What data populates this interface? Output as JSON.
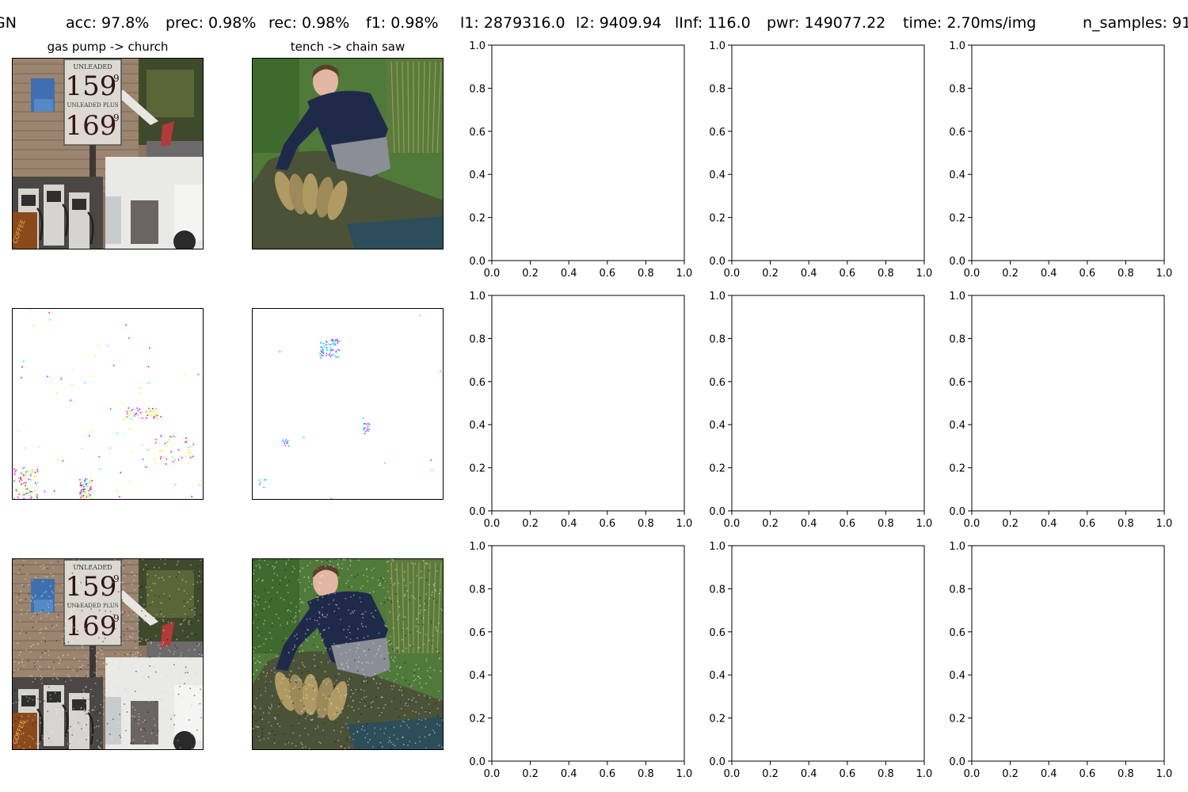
{
  "header": {
    "items": [
      {
        "name": "header-method",
        "text": "GN"
      },
      {
        "name": "header-acc",
        "text": "acc: 97.8%"
      },
      {
        "name": "header-prec",
        "text": "prec: 0.98%"
      },
      {
        "name": "header-rec",
        "text": "rec: 0.98%"
      },
      {
        "name": "header-f1",
        "text": "f1: 0.98%"
      },
      {
        "name": "header-l1",
        "text": "l1: 2879316.0"
      },
      {
        "name": "header-l2",
        "text": "l2: 9409.94"
      },
      {
        "name": "header-linf",
        "text": "lInf: 116.0"
      },
      {
        "name": "header-pwr",
        "text": "pwr: 149077.22"
      },
      {
        "name": "header-time",
        "text": "time: 2.70ms/img"
      },
      {
        "name": "header-samples",
        "text": "n_samples: 91"
      }
    ]
  },
  "image_panels": [
    {
      "row": 0,
      "col": 0,
      "title": "gas pump -> church",
      "scene": "gas-pump",
      "kind": "original"
    },
    {
      "row": 0,
      "col": 1,
      "title": "tench -> chain saw",
      "scene": "tench",
      "kind": "original"
    },
    {
      "row": 1,
      "col": 0,
      "title": "",
      "scene": "gas-pump",
      "kind": "perturbation"
    },
    {
      "row": 1,
      "col": 1,
      "title": "",
      "scene": "tench",
      "kind": "perturbation"
    },
    {
      "row": 2,
      "col": 0,
      "title": "",
      "scene": "gas-pump",
      "kind": "adversarial"
    },
    {
      "row": 2,
      "col": 1,
      "title": "",
      "scene": "tench",
      "kind": "adversarial"
    }
  ],
  "sign_text": {
    "unleaded": "UNLEADED",
    "unleaded_plus": "UNLEADED PLUS",
    "price1": "159",
    "price2": "169",
    "price_sup": "9",
    "coffee": "COFFEE"
  },
  "chart_data": {
    "type": "scatter",
    "title": "",
    "xlabel": "",
    "ylabel": "",
    "xlim": [
      0,
      1
    ],
    "ylim": [
      0,
      1
    ],
    "grid": false,
    "rows": 3,
    "cols": [
      2,
      3,
      4
    ],
    "xticks": [
      "0.0",
      "0.2",
      "0.4",
      "0.6",
      "0.8",
      "1.0"
    ],
    "yticks": [
      "0.0",
      "0.2",
      "0.4",
      "0.6",
      "0.8",
      "1.0"
    ],
    "series": []
  }
}
